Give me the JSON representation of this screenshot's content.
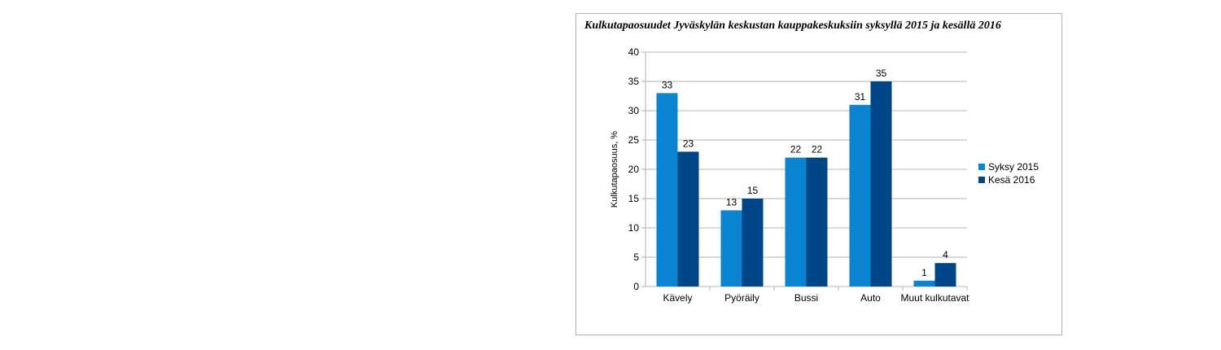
{
  "chart_data": {
    "type": "bar",
    "title": "Kulkutapaosuudet Jyväskylän keskustan kauppakeskuksiin syksyllä 2015 ja kesällä 2016",
    "xlabel": "",
    "ylabel": "Kulkutapaosuus, %",
    "ylim": [
      0,
      40
    ],
    "yticks": [
      0,
      5,
      10,
      15,
      20,
      25,
      30,
      35,
      40
    ],
    "grid": true,
    "legend_position": "right",
    "categories": [
      "Kävely",
      "Pyöräily",
      "Bussi",
      "Auto",
      "Muut kulkutavat"
    ],
    "series": [
      {
        "name": "Syksy 2015",
        "color": "#0a84d0",
        "values": [
          33,
          13,
          22,
          31,
          1
        ]
      },
      {
        "name": "Kesä 2016",
        "color": "#004586",
        "values": [
          23,
          15,
          22,
          35,
          4
        ]
      }
    ]
  }
}
